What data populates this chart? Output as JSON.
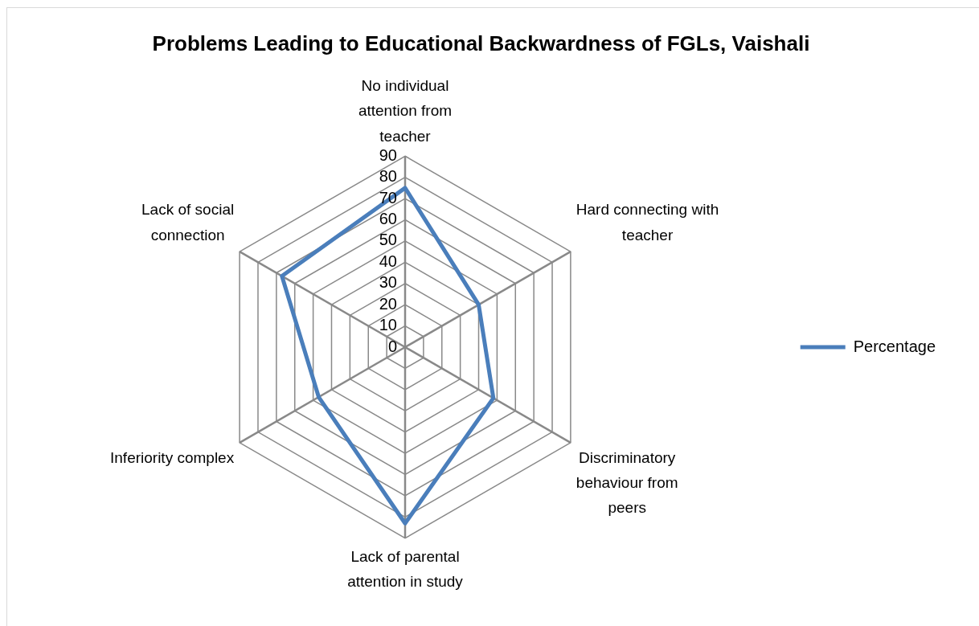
{
  "chart_data": {
    "type": "radar",
    "title": "Problems Leading to Educational Backwardness of FGLs, Vaishali",
    "categories": [
      "No individual attention from teacher",
      "Hard connecting with teacher",
      "Discriminatory behaviour from peers",
      "Lack of parental attention in study",
      "Inferiority complex",
      "Lack of social connection"
    ],
    "series": [
      {
        "name": "Percentage",
        "color": "#4a7ebb",
        "values": [
          75,
          40,
          48,
          83,
          47,
          67
        ]
      }
    ],
    "ylim": [
      0,
      90
    ],
    "yticks": [
      0,
      10,
      20,
      30,
      40,
      50,
      60,
      70,
      80,
      90
    ],
    "grid": true,
    "legend": "right",
    "marker": "none"
  }
}
